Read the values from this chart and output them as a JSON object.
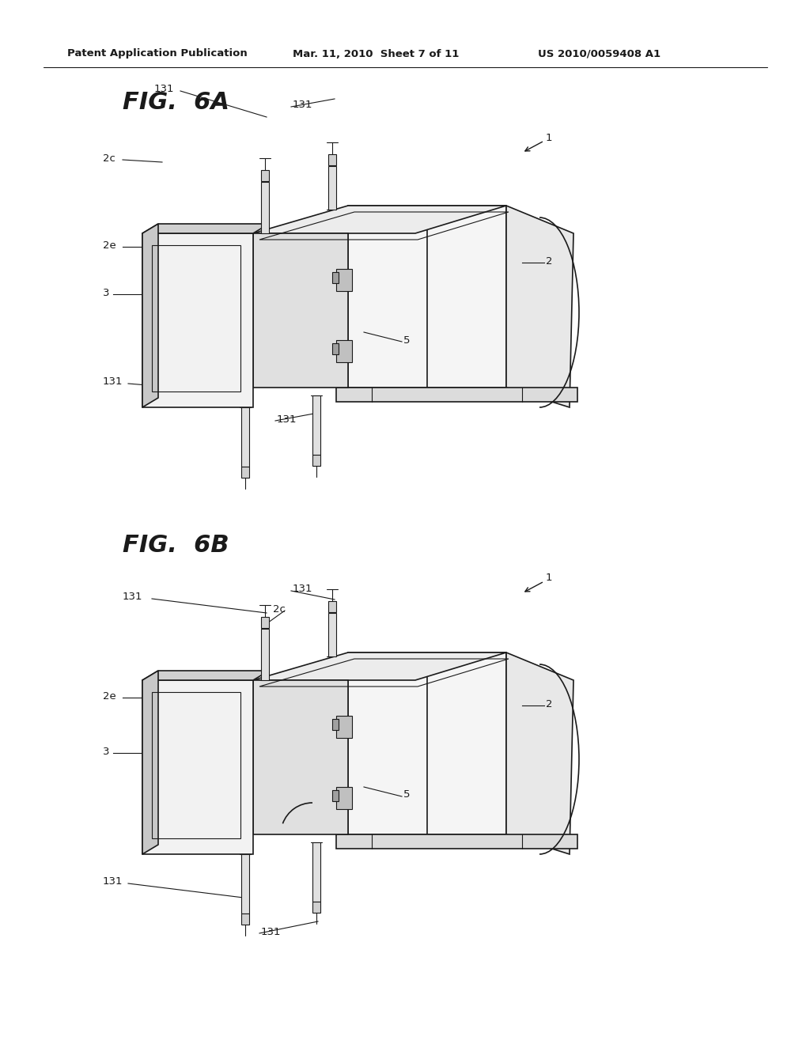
{
  "bg_color": "#ffffff",
  "header_left": "Patent Application Publication",
  "header_mid": "Mar. 11, 2010  Sheet 7 of 11",
  "header_right": "US 2010/0059408 A1",
  "fig_title_A": "FIG.  6A",
  "fig_title_B": "FIG.  6B",
  "line_color": "#1a1a1a",
  "label_color": "#111111"
}
